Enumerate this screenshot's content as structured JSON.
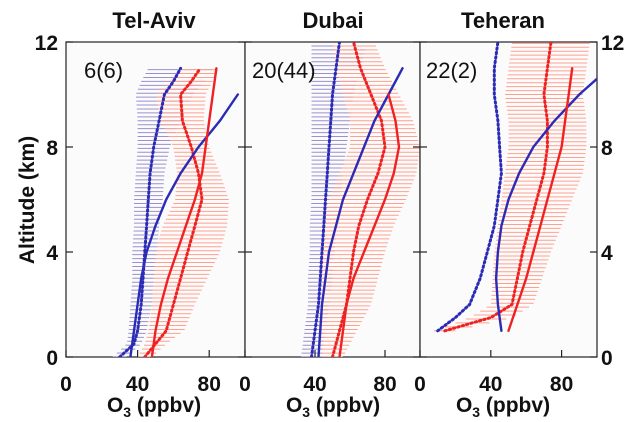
{
  "y_axis_label": "Altitude (km)",
  "x_axis_label_prefix": "O",
  "x_axis_label_sub": "3",
  "x_axis_label_suffix": " (ppbv)",
  "colors": {
    "blue": "#2b2bb5",
    "red": "#ee2222",
    "blue_bars": "#9a90cc",
    "red_bars": "#ffa08f"
  },
  "chart_data": [
    {
      "type": "line",
      "title": "Tel-Aviv",
      "count_label": "6(6)",
      "xlim": [
        0,
        100
      ],
      "ylim": [
        0,
        12
      ],
      "xticks": [
        0,
        40,
        80
      ],
      "yticks": [
        0,
        4,
        8,
        12
      ],
      "series": [
        {
          "role": "blue-profile-mean",
          "color": "#2b2bb5",
          "x": [
            30,
            38,
            40,
            42,
            43,
            44,
            45,
            46,
            47,
            49,
            52,
            55,
            60,
            64
          ],
          "y": [
            0,
            0.5,
            1,
            2,
            3,
            4,
            5,
            6,
            7,
            8,
            9,
            10,
            10.5,
            11
          ],
          "xerr": [
            4,
            4,
            5,
            6,
            6,
            7,
            7,
            8,
            8,
            9,
            12,
            16,
            18,
            18
          ]
        },
        {
          "role": "red-profile-mean",
          "color": "#ee2222",
          "x": [
            44,
            50,
            56,
            60,
            64,
            68,
            72,
            76,
            74,
            70,
            65,
            64,
            70,
            75
          ],
          "y": [
            0,
            0.5,
            1,
            2,
            3,
            4,
            5,
            6,
            7,
            8,
            9,
            10,
            10.5,
            11
          ],
          "xerr": [
            4,
            6,
            10,
            12,
            15,
            18,
            18,
            15,
            12,
            10,
            12,
            14,
            12,
            10
          ]
        },
        {
          "role": "blue-climatology",
          "color": "#2b2bb5",
          "x": [
            36,
            38,
            40,
            42,
            45,
            50,
            56,
            64,
            74,
            86,
            96
          ],
          "y": [
            0,
            1,
            2,
            3,
            4,
            5,
            6,
            7,
            8,
            9,
            10
          ]
        },
        {
          "role": "red-climatology",
          "color": "#ee2222",
          "x": [
            48,
            50,
            53,
            57,
            62,
            67,
            72,
            76,
            78,
            80,
            82,
            84
          ],
          "y": [
            0,
            1,
            2,
            3,
            4,
            5,
            6,
            7,
            8,
            9,
            10,
            11
          ]
        }
      ]
    },
    {
      "type": "line",
      "title": "Dubai",
      "count_label": "20(44)",
      "xlim": [
        0,
        100
      ],
      "ylim": [
        0,
        12
      ],
      "xticks": [
        0,
        40,
        80
      ],
      "yticks": [
        0,
        4,
        8,
        12
      ],
      "series": [
        {
          "role": "blue-profile-mean",
          "color": "#2b2bb5",
          "x": [
            38,
            40,
            42,
            43,
            44,
            45,
            46,
            47,
            48,
            49,
            50,
            52,
            54
          ],
          "y": [
            0,
            1,
            2,
            3,
            4,
            5,
            6,
            7,
            8,
            9,
            10,
            11,
            12
          ],
          "xerr": [
            6,
            6,
            6,
            7,
            7,
            8,
            8,
            9,
            10,
            11,
            12,
            14,
            16
          ]
        },
        {
          "role": "red-profile-mean",
          "color": "#ee2222",
          "x": [
            50,
            54,
            58,
            60,
            62,
            65,
            70,
            76,
            80,
            78,
            72,
            66,
            62
          ],
          "y": [
            0,
            1,
            2,
            3,
            4,
            5,
            6,
            7,
            8,
            9,
            10,
            11,
            12
          ],
          "xerr": [
            6,
            10,
            14,
            16,
            18,
            20,
            22,
            22,
            20,
            18,
            16,
            14,
            12
          ]
        },
        {
          "role": "blue-climatology",
          "color": "#2b2bb5",
          "x": [
            42,
            44,
            46,
            48,
            52,
            56,
            62,
            68,
            74,
            82,
            90
          ],
          "y": [
            0,
            2,
            3,
            4,
            5,
            6,
            7,
            8,
            9,
            10,
            11
          ]
        },
        {
          "role": "red-climatology",
          "color": "#ee2222",
          "x": [
            54,
            56,
            58,
            62,
            68,
            74,
            80,
            85,
            88,
            86,
            82
          ],
          "y": [
            0,
            1,
            2,
            3,
            4,
            5,
            6,
            7,
            8,
            9,
            10
          ]
        }
      ]
    },
    {
      "type": "line",
      "title": "Teheran",
      "count_label": "22(2)",
      "xlim": [
        0,
        100
      ],
      "ylim": [
        0,
        12
      ],
      "xticks": [
        0,
        40,
        80
      ],
      "yticks": [
        0,
        4,
        8,
        12
      ],
      "series": [
        {
          "role": "blue-profile-mean",
          "color": "#2b2bb5",
          "x": [
            10,
            20,
            28,
            34,
            38,
            42,
            44,
            46,
            45,
            44,
            42,
            42,
            44
          ],
          "y": [
            1,
            1.5,
            2,
            3,
            4,
            5,
            6,
            7,
            8,
            9,
            10,
            11,
            12
          ]
        },
        {
          "role": "red-profile-mean",
          "color": "#ee2222",
          "x": [
            14,
            40,
            52,
            55,
            58,
            62,
            66,
            70,
            72,
            72,
            70,
            72,
            74
          ],
          "y": [
            1,
            1.5,
            2,
            3,
            4,
            5,
            6,
            7,
            8,
            9,
            10,
            11,
            12
          ],
          "xerr": [
            6,
            12,
            12,
            14,
            16,
            18,
            20,
            22,
            22,
            22,
            22,
            22,
            22
          ]
        },
        {
          "role": "blue-climatology",
          "color": "#2b2bb5",
          "x": [
            46,
            44,
            43,
            44,
            46,
            50,
            56,
            64,
            76,
            90,
            100
          ],
          "y": [
            1,
            2,
            3,
            4,
            5,
            6,
            7,
            8,
            9,
            10,
            10.6
          ]
        },
        {
          "role": "red-climatology",
          "color": "#ee2222",
          "x": [
            50,
            55,
            60,
            64,
            68,
            72,
            76,
            80,
            82,
            84,
            86
          ],
          "y": [
            1,
            2,
            3,
            4,
            5,
            6,
            7,
            8,
            9,
            10,
            11
          ]
        }
      ]
    }
  ]
}
